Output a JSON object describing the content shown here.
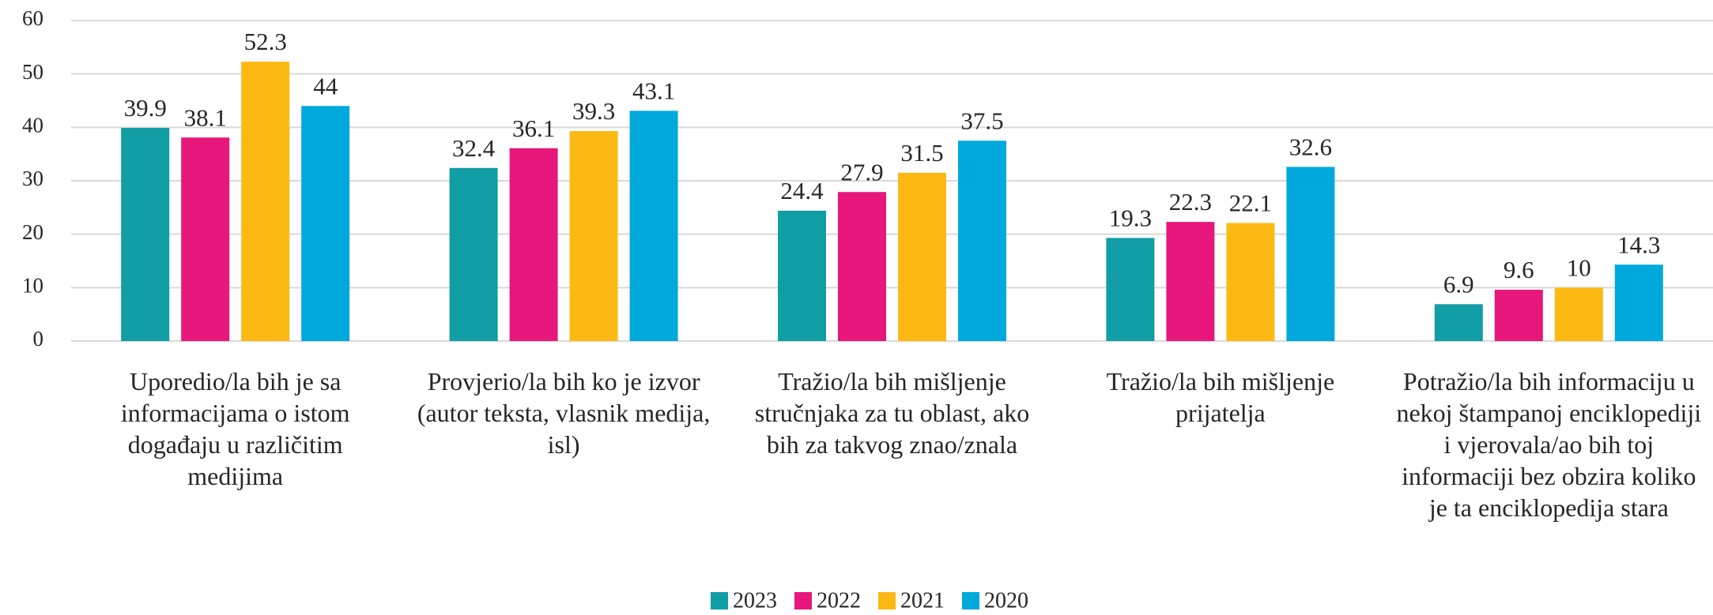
{
  "chart_data": {
    "type": "bar",
    "categories": [
      "Uporedio/la bih je sa informacijama o istom događaju u različitim medijima",
      "Provjerio/la bih ko je izvor (autor teksta, vlasnik medija, isl)",
      "Tražio/la bih mišljenje stručnjaka za tu oblast, ako bih za takvog znao/znala",
      "Tražio/la bih mišljenje prijatelja",
      "Potražio/la bih informaciju u nekoj štampanoj enciklopediji i vjerovala/ao bih toj informaciji bez obzira koliko je ta enciklopedija stara"
    ],
    "series": [
      {
        "name": "2023",
        "color": "#119da4",
        "values": [
          39.9,
          32.4,
          24.4,
          19.3,
          6.9
        ]
      },
      {
        "name": "2022",
        "color": "#e8177c",
        "values": [
          38.1,
          36.1,
          27.9,
          22.3,
          9.6
        ]
      },
      {
        "name": "2021",
        "color": "#fdb913",
        "values": [
          52.3,
          39.3,
          31.5,
          22.1,
          10
        ]
      },
      {
        "name": "2020",
        "color": "#00a9dc",
        "values": [
          44,
          43.1,
          37.5,
          32.6,
          14.3
        ]
      }
    ],
    "ylim": [
      0,
      60
    ],
    "yticks": [
      0,
      10,
      20,
      30,
      40,
      50,
      60
    ],
    "grid": true,
    "legend": "bottom"
  }
}
